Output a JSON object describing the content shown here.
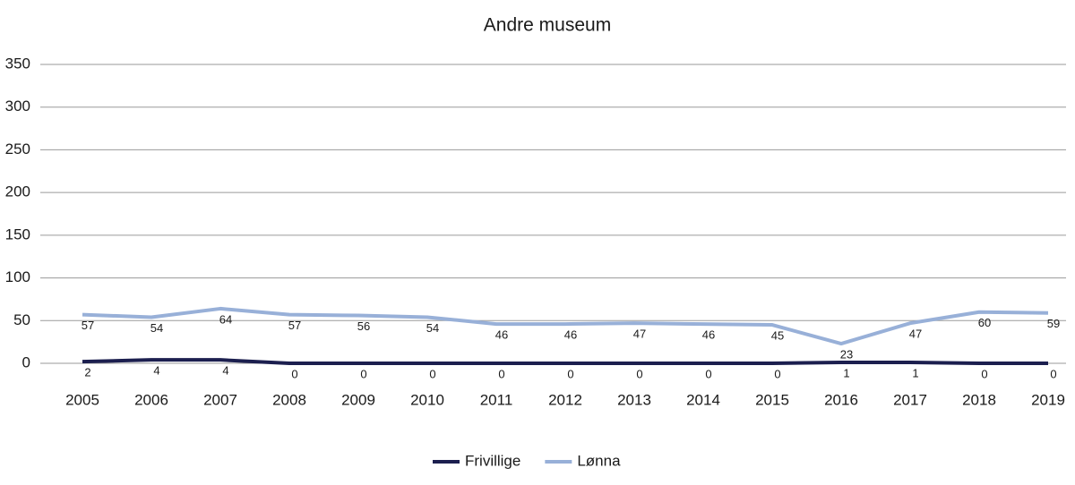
{
  "chart_data": {
    "type": "line",
    "title": "Andre museum",
    "categories": [
      "2005",
      "2006",
      "2007",
      "2008",
      "2009",
      "2010",
      "2011",
      "2012",
      "2013",
      "2014",
      "2015",
      "2016",
      "2017",
      "2018",
      "2019"
    ],
    "series": [
      {
        "name": "Frivillige",
        "color": "#1c1f4f",
        "values": [
          2,
          4,
          4,
          0,
          0,
          0,
          0,
          0,
          0,
          0,
          0,
          1,
          1,
          0,
          0
        ]
      },
      {
        "name": "Lønna",
        "color": "#98b0d8",
        "values": [
          57,
          54,
          64,
          57,
          56,
          54,
          46,
          46,
          47,
          46,
          45,
          23,
          47,
          60,
          59
        ]
      }
    ],
    "ylim": [
      0,
      350
    ],
    "yticks": [
      0,
      50,
      100,
      150,
      200,
      250,
      300,
      350
    ],
    "grid": true,
    "legend": "bottom"
  }
}
